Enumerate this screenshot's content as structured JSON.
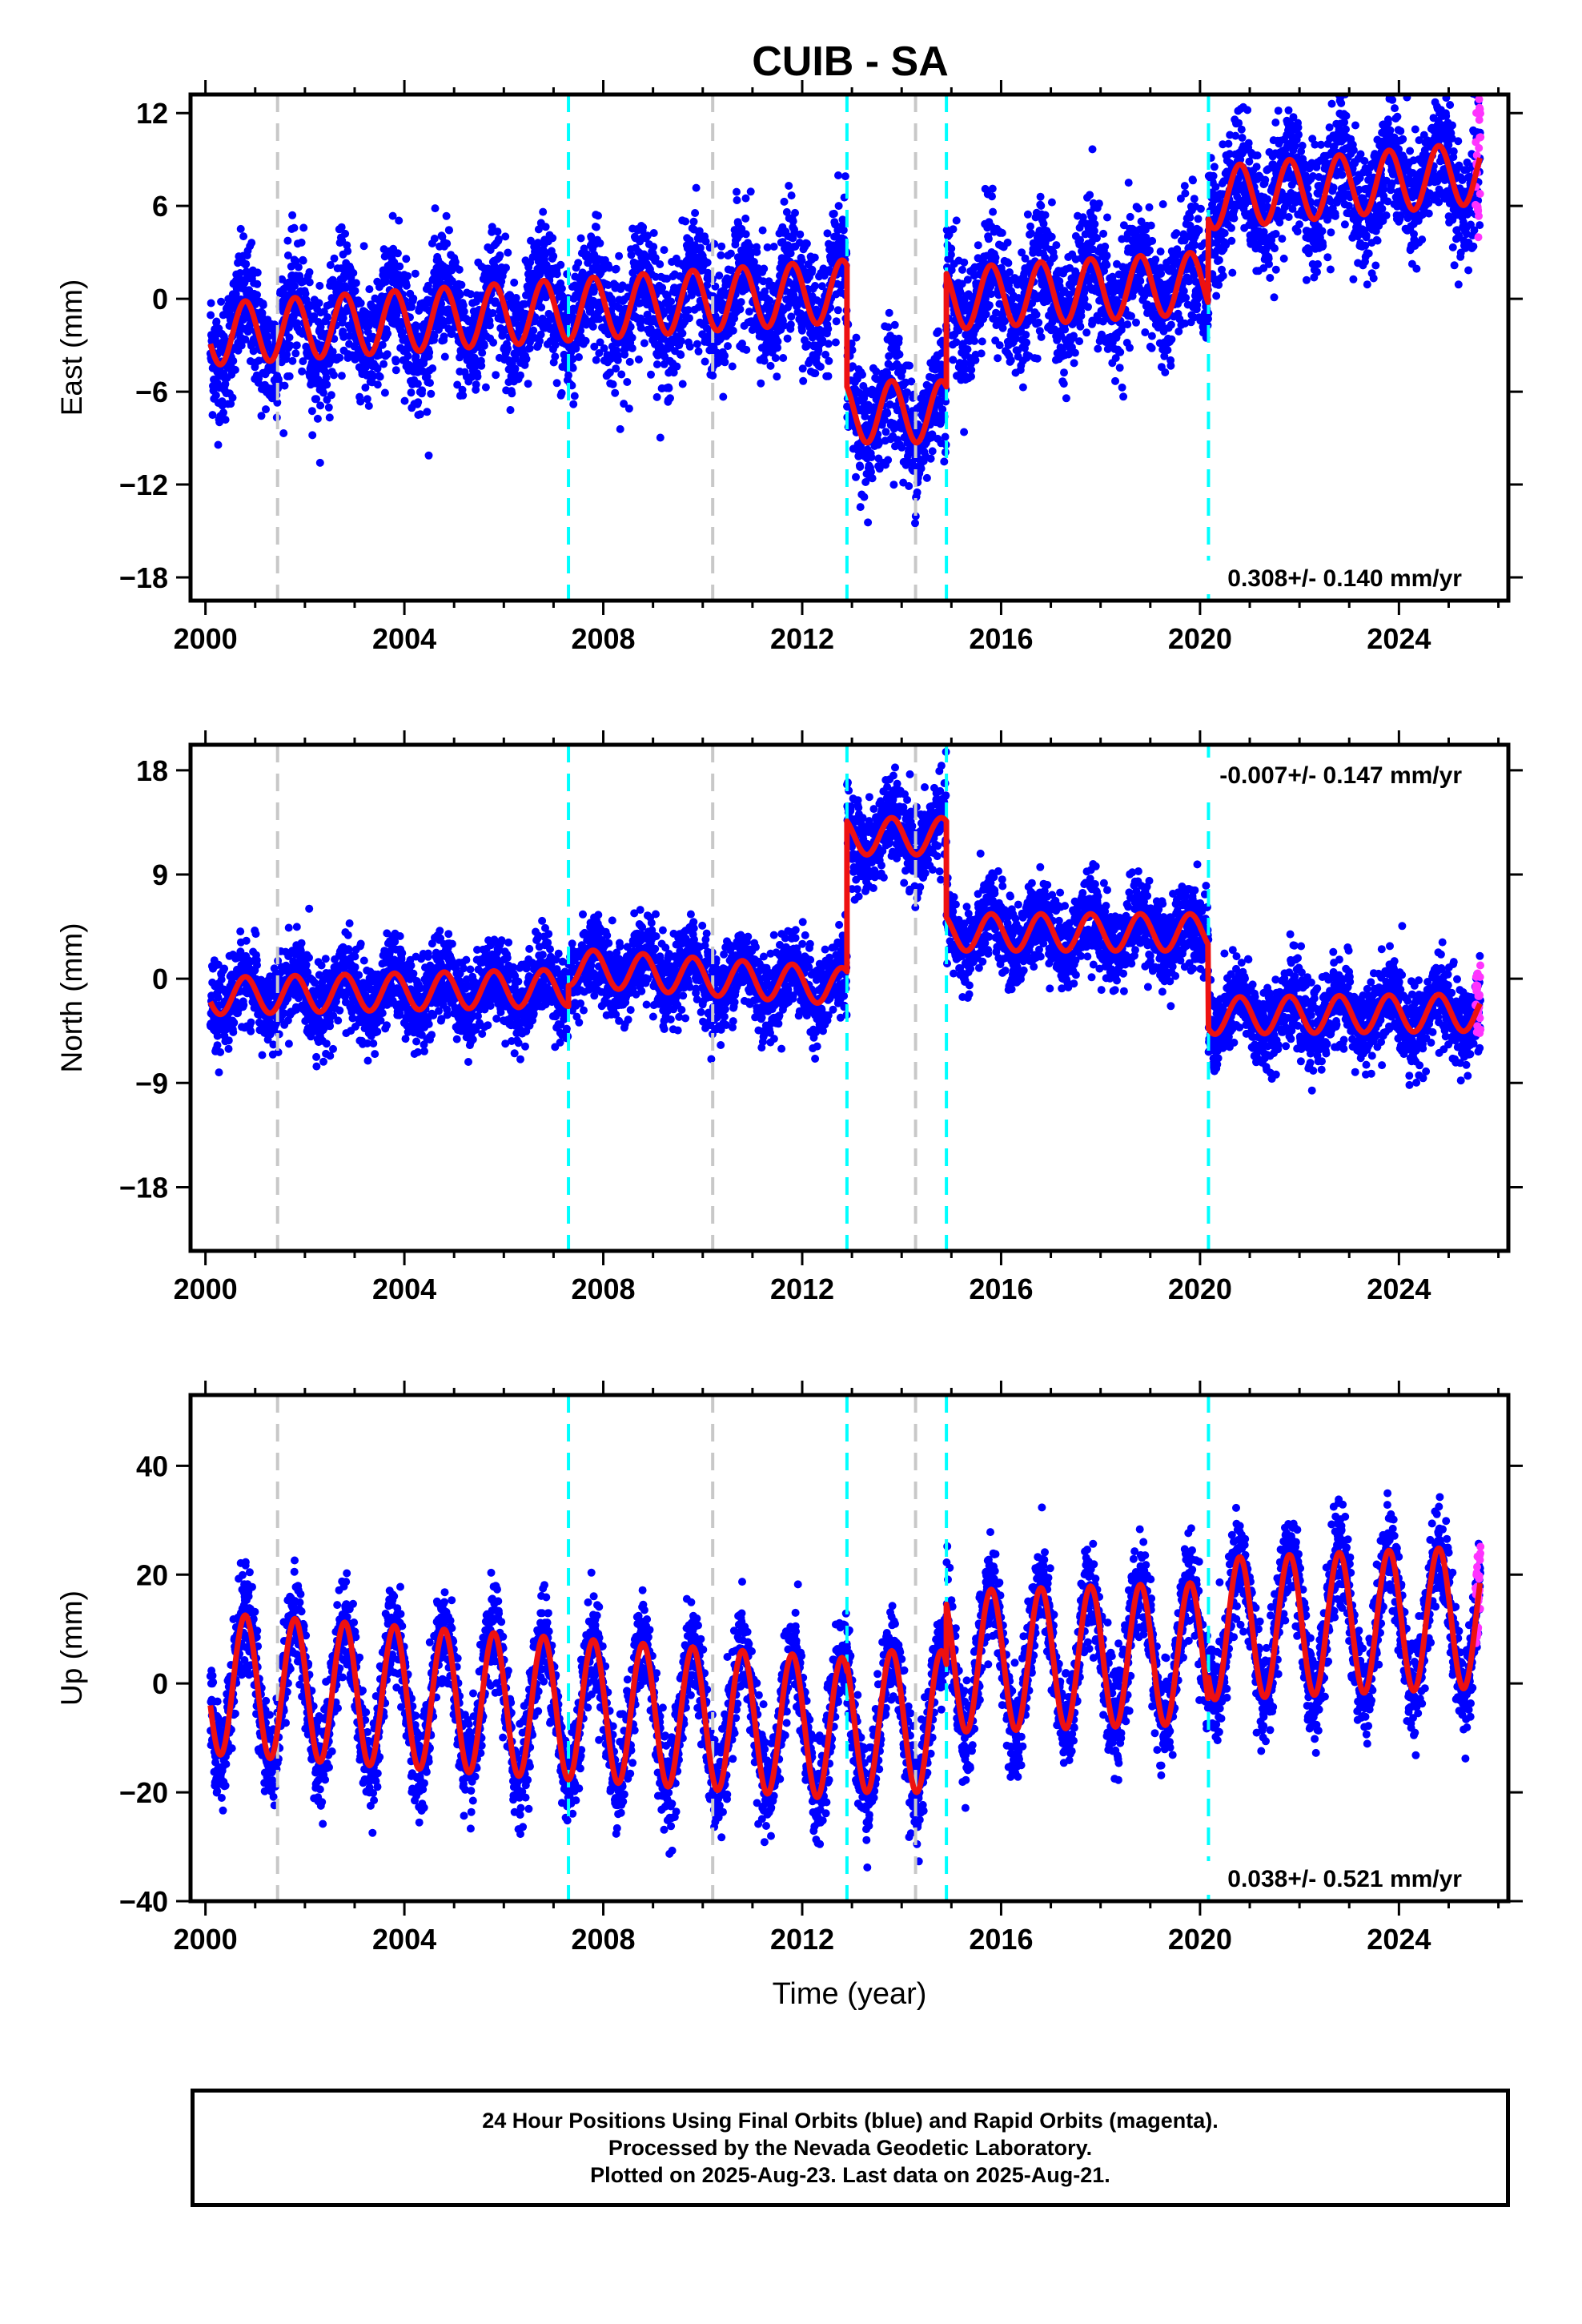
{
  "title": "CUIB - SA",
  "chart_data": [
    {
      "type": "scatter",
      "ylabel": "East (mm)",
      "xlabel": "",
      "xlim": [
        1999.7,
        2026.2
      ],
      "ylim": [
        -19.5,
        13.2
      ],
      "xticks": [
        2000,
        2004,
        2008,
        2012,
        2016,
        2020,
        2024
      ],
      "yticks": [
        12,
        6,
        0,
        -6,
        -12,
        -18
      ],
      "ytick_labels": [
        "12",
        "6",
        "0",
        "−6",
        "−12",
        "−18"
      ],
      "rate": "0.308+/- 0.140 mm/yr",
      "rate_position": "bottom-right",
      "grey_lines": [
        2001.45,
        2010.2,
        2014.28
      ],
      "cyan_lines": [
        2007.3,
        2012.9,
        2014.9,
        2020.17
      ],
      "segments": [
        {
          "start": 2000.1,
          "end": 2012.9,
          "level": -2.3,
          "slope": 0.22
        },
        {
          "start": 2012.9,
          "end": 2014.9,
          "level": -7.3,
          "slope": 0.0
        },
        {
          "start": 2014.9,
          "end": 2020.17,
          "level": 0.0,
          "slope": 0.2
        },
        {
          "start": 2020.17,
          "end": 2025.64,
          "level": 6.5,
          "slope": 0.3
        }
      ],
      "seasonal_amplitude": 2.0,
      "scatter_sigma": 2.0,
      "series": [
        {
          "name": "Final Orbits",
          "color": "#0000ff"
        },
        {
          "name": "Rapid Orbits",
          "color": "#ff33ff"
        },
        {
          "name": "Model fit",
          "color": "#ee1111"
        }
      ]
    },
    {
      "type": "scatter",
      "ylabel": "North (mm)",
      "xlabel": "",
      "xlim": [
        1999.7,
        2026.2
      ],
      "ylim": [
        -23.5,
        20.2
      ],
      "xticks": [
        2000,
        2004,
        2008,
        2012,
        2016,
        2020,
        2024
      ],
      "yticks": [
        18,
        9,
        0,
        -9,
        -18
      ],
      "ytick_labels": [
        "18",
        "9",
        "0",
        "−9",
        "−18"
      ],
      "rate": "-0.007+/- 0.147 mm/yr",
      "rate_position": "top-right",
      "grey_lines": [
        2001.45,
        2010.2,
        2014.28
      ],
      "cyan_lines": [
        2007.3,
        2012.9,
        2014.9,
        2020.17
      ],
      "segments": [
        {
          "start": 2000.1,
          "end": 2007.3,
          "level": -1.5,
          "slope": 0.1
        },
        {
          "start": 2007.3,
          "end": 2012.9,
          "level": 1.0,
          "slope": -0.3
        },
        {
          "start": 2012.9,
          "end": 2014.9,
          "level": 12.3,
          "slope": 0.0
        },
        {
          "start": 2014.9,
          "end": 2020.17,
          "level": 4.0,
          "slope": 0.0
        },
        {
          "start": 2020.17,
          "end": 2025.64,
          "level": -3.2,
          "slope": 0.05
        }
      ],
      "seasonal_amplitude": 1.6,
      "scatter_sigma": 1.8,
      "series": [
        {
          "name": "Final Orbits",
          "color": "#0000ff"
        },
        {
          "name": "Rapid Orbits",
          "color": "#ff33ff"
        },
        {
          "name": "Model fit",
          "color": "#ee1111"
        }
      ]
    },
    {
      "type": "scatter",
      "ylabel": "Up (mm)",
      "xlabel": "Time (year)",
      "xlim": [
        1999.7,
        2026.2
      ],
      "ylim": [
        -40,
        53
      ],
      "xticks": [
        2000,
        2004,
        2008,
        2012,
        2016,
        2020,
        2024
      ],
      "yticks": [
        40,
        20,
        0,
        -20,
        -40
      ],
      "ytick_labels": [
        "40",
        "20",
        "0",
        "−20",
        "−40"
      ],
      "rate": "0.038+/- 0.521 mm/yr",
      "rate_position": "bottom-right",
      "grey_lines": [
        2001.45,
        2010.2,
        2014.28
      ],
      "cyan_lines": [
        2007.3,
        2012.9,
        2014.9,
        2020.17
      ],
      "segments": [
        {
          "start": 2000.1,
          "end": 2012.9,
          "level": 0.0,
          "slope": -0.65
        },
        {
          "start": 2012.9,
          "end": 2014.9,
          "level": -7.0,
          "slope": 0.0
        },
        {
          "start": 2014.9,
          "end": 2020.17,
          "level": 4.0,
          "slope": 0.3
        },
        {
          "start": 2020.17,
          "end": 2025.64,
          "level": 10.0,
          "slope": 0.4
        }
      ],
      "seasonal_amplitude": 13.0,
      "scatter_sigma": 4.5,
      "series": [
        {
          "name": "Final Orbits",
          "color": "#0000ff"
        },
        {
          "name": "Rapid Orbits",
          "color": "#ff33ff"
        },
        {
          "name": "Model fit",
          "color": "#ee1111"
        }
      ]
    }
  ],
  "footer": {
    "line1": "24 Hour Positions Using Final Orbits (blue) and Rapid Orbits (magenta).",
    "line2": "Processed by the Nevada Geodetic Laboratory.",
    "line3": "Plotted on 2025-Aug-23. Last data on 2025-Aug-21."
  }
}
